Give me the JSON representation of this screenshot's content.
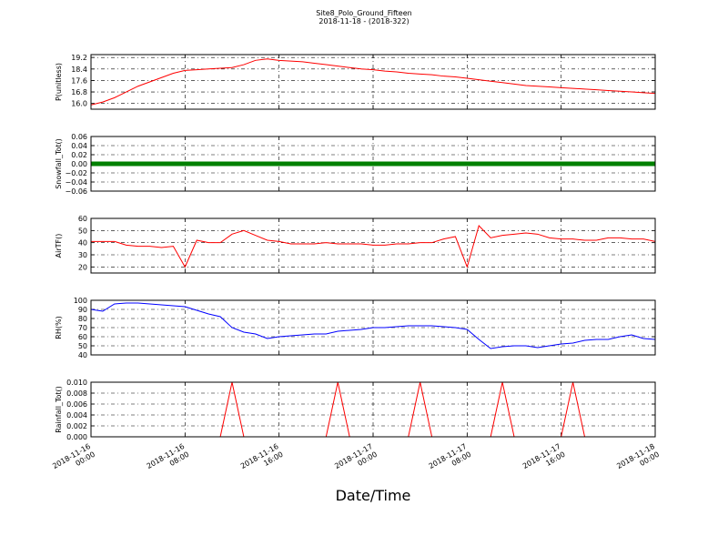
{
  "chart_data": {
    "type": "line",
    "title": "Site8_Polo_Ground_Fifteen",
    "subtitle": "2018-11-18 - (2018-322)",
    "xlabel": "Date/Time",
    "xlim": [
      "2018-11-16 00:00",
      "2018-11-18 00:00"
    ],
    "xticks": [
      {
        "value": "2018-11-16 00:00",
        "label": "2018-11-16\n00:00"
      },
      {
        "value": "2018-11-16 08:00",
        "label": "2018-11-16\n08:00"
      },
      {
        "value": "2018-11-16 16:00",
        "label": "2018-11-16\n16:00"
      },
      {
        "value": "2018-11-17 00:00",
        "label": "2018-11-17\n00:00"
      },
      {
        "value": "2018-11-17 08:00",
        "label": "2018-11-17\n08:00"
      },
      {
        "value": "2018-11-17 16:00",
        "label": "2018-11-17\n16:00"
      },
      {
        "value": "2018-11-18 00:00",
        "label": "2018-11-18\n00:00"
      }
    ],
    "grid": true,
    "x": [
      "2018-11-16 00:00",
      "2018-11-16 01:00",
      "2018-11-16 02:00",
      "2018-11-16 03:00",
      "2018-11-16 04:00",
      "2018-11-16 05:00",
      "2018-11-16 06:00",
      "2018-11-16 07:00",
      "2018-11-16 08:00",
      "2018-11-16 09:00",
      "2018-11-16 10:00",
      "2018-11-16 11:00",
      "2018-11-16 12:00",
      "2018-11-16 13:00",
      "2018-11-16 14:00",
      "2018-11-16 15:00",
      "2018-11-16 16:00",
      "2018-11-16 17:00",
      "2018-11-16 18:00",
      "2018-11-16 19:00",
      "2018-11-16 20:00",
      "2018-11-16 21:00",
      "2018-11-16 22:00",
      "2018-11-16 23:00",
      "2018-11-17 00:00",
      "2018-11-17 01:00",
      "2018-11-17 02:00",
      "2018-11-17 03:00",
      "2018-11-17 04:00",
      "2018-11-17 05:00",
      "2018-11-17 06:00",
      "2018-11-17 07:00",
      "2018-11-17 08:00",
      "2018-11-17 09:00",
      "2018-11-17 10:00",
      "2018-11-17 11:00",
      "2018-11-17 12:00",
      "2018-11-17 13:00",
      "2018-11-17 14:00",
      "2018-11-17 15:00",
      "2018-11-17 16:00",
      "2018-11-17 17:00",
      "2018-11-17 18:00",
      "2018-11-17 19:00",
      "2018-11-17 20:00",
      "2018-11-17 21:00",
      "2018-11-17 22:00",
      "2018-11-17 23:00",
      "2018-11-18 00:00"
    ],
    "panels": [
      {
        "ylabel": "P(unitless)",
        "ylim": [
          15.6,
          19.4
        ],
        "yticks": [
          {
            "value": 16.0,
            "label": "16.0"
          },
          16.8,
          17.6,
          18.4,
          19.2
        ],
        "series": [
          {
            "color": "#ff0000",
            "width": 1,
            "values": [
              15.9,
              16.1,
              16.4,
              16.8,
              17.2,
              17.5,
              17.8,
              18.1,
              18.3,
              18.35,
              18.4,
              18.45,
              18.5,
              18.7,
              19.0,
              19.1,
              19.0,
              18.95,
              18.9,
              18.8,
              18.7,
              18.6,
              18.5,
              18.4,
              18.35,
              18.25,
              18.2,
              18.1,
              18.05,
              18.0,
              17.9,
              17.85,
              17.75,
              17.65,
              17.55,
              17.45,
              17.35,
              17.25,
              17.2,
              17.15,
              17.1,
              17.05,
              17.0,
              16.95,
              16.9,
              16.85,
              16.8,
              16.75,
              16.7
            ]
          }
        ]
      },
      {
        "ylabel": "Snowfall_Tot()",
        "ylim": [
          -0.06,
          0.06
        ],
        "yticks": [
          {
            "value": -0.06,
            "label": "−0.06"
          },
          {
            "value": -0.04,
            "label": "−0.04"
          },
          {
            "value": -0.02,
            "label": "−0.02"
          },
          {
            "value": 0,
            "label": "0.00"
          },
          0.02,
          0.04,
          0.06
        ],
        "series": [
          {
            "color": "#008000",
            "width": 5,
            "values": [
              0,
              0,
              0,
              0,
              0,
              0,
              0,
              0,
              0,
              0,
              0,
              0,
              0,
              0,
              0,
              0,
              0,
              0,
              0,
              0,
              0,
              0,
              0,
              0,
              0,
              0,
              0,
              0,
              0,
              0,
              0,
              0,
              0,
              0,
              0,
              0,
              0,
              0,
              0,
              0,
              0,
              0,
              0,
              0,
              0,
              0,
              0,
              0,
              0
            ]
          }
        ]
      },
      {
        "ylabel": "AirTF()",
        "ylim": [
          15,
          60
        ],
        "yticks": [
          20,
          30,
          40,
          50,
          60
        ],
        "series": [
          {
            "color": "#ff0000",
            "width": 1,
            "values": [
              41,
              41,
              41,
              38,
              37,
              37,
              36,
              37,
              20,
              42,
              40,
              40,
              47,
              50,
              46,
              42,
              41,
              39,
              39,
              39,
              40,
              39,
              39,
              39,
              38,
              38,
              39,
              39,
              40,
              40,
              43,
              45,
              20,
              54,
              44,
              46,
              47,
              48,
              47,
              44,
              43,
              43,
              42,
              42,
              44,
              44,
              43,
              43,
              41
            ]
          }
        ]
      },
      {
        "ylabel": "RH(%)",
        "ylim": [
          40,
          100
        ],
        "yticks": [
          40,
          50,
          60,
          70,
          80,
          90,
          100
        ],
        "series": [
          {
            "color": "#0000ff",
            "width": 1,
            "values": [
              90,
              88,
              96,
              97,
              97,
              96,
              95,
              94,
              93,
              89,
              85,
              82,
              70,
              65,
              63,
              58,
              60,
              61,
              62,
              63,
              63,
              66,
              67,
              68,
              70,
              70,
              71,
              72,
              72,
              72,
              71,
              70,
              68,
              57,
              47,
              49,
              50,
              50,
              48,
              50,
              52,
              53,
              56,
              57,
              57,
              60,
              62,
              58,
              57
            ]
          }
        ]
      },
      {
        "ylabel": "Rainfall_Tot()",
        "ylim": [
          0,
          0.01
        ],
        "yticks": [
          {
            "value": 0,
            "label": "0.000"
          },
          0.002,
          0.004,
          0.006,
          0.008,
          {
            "value": 0.01,
            "label": "0.010"
          }
        ],
        "series": [
          {
            "color": "#ff0000",
            "width": 1,
            "values": [
              0,
              0,
              0,
              0,
              0,
              0,
              0,
              0,
              0,
              0,
              0,
              0,
              0.01,
              0,
              0,
              0,
              0,
              0,
              0,
              0,
              0,
              0.01,
              0,
              0,
              0,
              0,
              0,
              0,
              0.01,
              0,
              0,
              0,
              0,
              0,
              0,
              0.01,
              0,
              0,
              0,
              0,
              0,
              0.01,
              0,
              0,
              0,
              0,
              0,
              0,
              0
            ]
          }
        ]
      }
    ]
  }
}
